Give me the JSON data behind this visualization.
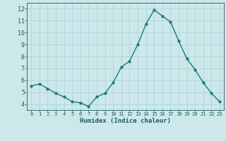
{
  "x": [
    0,
    1,
    2,
    3,
    4,
    5,
    6,
    7,
    8,
    9,
    10,
    11,
    12,
    13,
    14,
    15,
    16,
    17,
    18,
    19,
    20,
    21,
    22,
    23
  ],
  "y": [
    5.5,
    5.7,
    5.3,
    4.9,
    4.6,
    4.2,
    4.1,
    3.8,
    4.6,
    4.9,
    5.8,
    7.1,
    7.6,
    9.0,
    10.7,
    11.9,
    11.4,
    10.9,
    9.3,
    7.8,
    6.9,
    5.8,
    4.9,
    4.2
  ],
  "line_color": "#1a7a6e",
  "marker": "o",
  "marker_size": 2.0,
  "bg_color": "#cce8ea",
  "grid_color": "#b0d4d8",
  "xlabel": "Humidex (Indice chaleur)",
  "xlabel_color": "#1a5e5a",
  "tick_color": "#1a5e5a",
  "xlim": [
    -0.5,
    23.5
  ],
  "ylim": [
    3.5,
    12.5
  ],
  "yticks": [
    4,
    5,
    6,
    7,
    8,
    9,
    10,
    11,
    12
  ],
  "xticks": [
    0,
    1,
    2,
    3,
    4,
    5,
    6,
    7,
    8,
    9,
    10,
    11,
    12,
    13,
    14,
    15,
    16,
    17,
    18,
    19,
    20,
    21,
    22,
    23
  ]
}
